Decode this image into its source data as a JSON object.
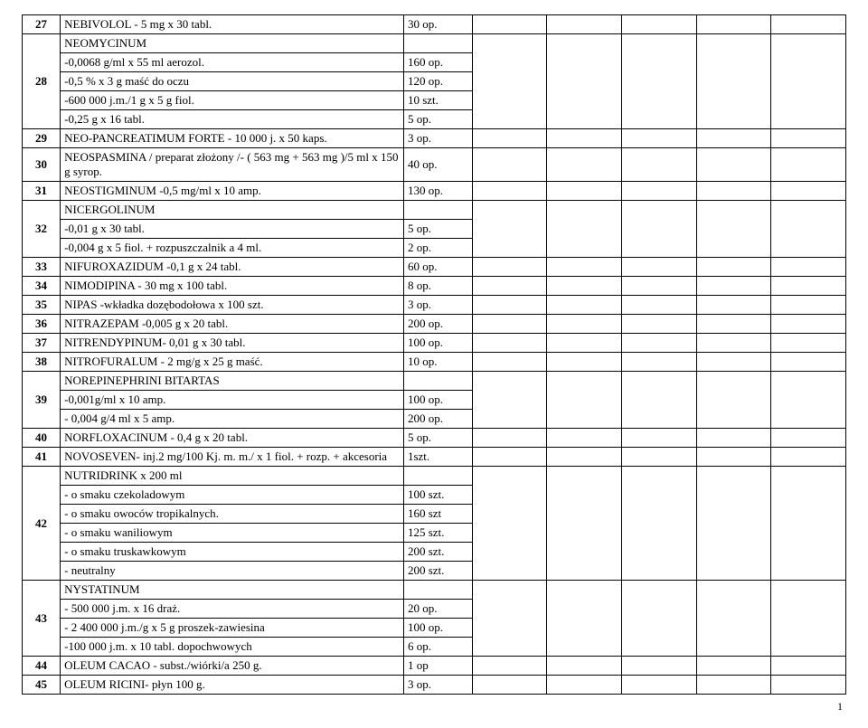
{
  "page_number": "1",
  "rows": [
    {
      "type": "single",
      "num": "27",
      "desc": "NEBIVOLOL - 5 mg x 30 tabl.",
      "qty": "30 op."
    },
    {
      "type": "multi",
      "num": "28",
      "lines": [
        {
          "desc": "NEOMYCINUM",
          "qty": ""
        },
        {
          "desc": "-0,0068 g/ml x 55 ml aerozol.",
          "qty": "160 op."
        },
        {
          "desc": "-0,5 % x 3 g maść do oczu",
          "qty": "120 op."
        },
        {
          "desc": "-600 000 j.m./1 g x 5 g fiol.",
          "qty": "10 szt."
        },
        {
          "desc": "-0,25 g x 16 tabl.",
          "qty": "5 op."
        }
      ]
    },
    {
      "type": "single",
      "num": "29",
      "desc": "NEO-PANCREATIMUM FORTE - 10 000 j. x 50 kaps.",
      "qty": "3 op."
    },
    {
      "type": "single",
      "num": "30",
      "desc": "NEOSPASMINA / preparat złożony /- ( 563 mg + 563 mg )/5 ml x 150 g syrop.",
      "qty": "40 op."
    },
    {
      "type": "single",
      "num": "31",
      "desc": "NEOSTIGMINUM  -0,5 mg/ml x 10 amp.",
      "qty": "130 op."
    },
    {
      "type": "multi",
      "num": "32",
      "lines": [
        {
          "desc": "NICERGOLINUM",
          "qty": ""
        },
        {
          "desc": "-0,01 g x 30 tabl.",
          "qty": "5  op."
        },
        {
          "desc": "-0,004 g x 5 fiol. + rozpuszczalnik a 4 ml.",
          "qty": "2 op."
        }
      ]
    },
    {
      "type": "single",
      "num": "33",
      "desc": "NIFUROXAZIDUM -0,1 g x 24 tabl.",
      "qty": "60 op."
    },
    {
      "type": "single",
      "num": "34",
      "desc": "NIMODIPINA - 30 mg x 100 tabl.",
      "qty": "8 op."
    },
    {
      "type": "single",
      "num": "35",
      "desc": "NIPAS -wkładka dozębodołowa x 100 szt.",
      "qty": "3 op."
    },
    {
      "type": "single",
      "num": "36",
      "desc": "NITRAZEPAM -0,005 g x 20 tabl.",
      "qty": "200 op."
    },
    {
      "type": "single",
      "num": "37",
      "desc": "NITRENDYPINUM- 0,01 g x 30 tabl.",
      "qty": "100 op."
    },
    {
      "type": "single",
      "num": "38",
      "desc": "NITROFURALUM -  2 mg/g x 25 g maść.",
      "qty": "10 op."
    },
    {
      "type": "multi",
      "num": "39",
      "lines": [
        {
          "desc": "NOREPINEPHRINI BITARTAS",
          "qty": ""
        },
        {
          "desc": "-0,001g/ml x 10 amp.",
          "qty": "100 op."
        },
        {
          "desc": "- 0,004 g/4 ml x 5 amp.",
          "qty": "200 op."
        }
      ]
    },
    {
      "type": "single",
      "num": "40",
      "desc": "NORFLOXACINUM  - 0,4 g x 20 tabl.",
      "qty": "5 op."
    },
    {
      "type": "single",
      "num": "41",
      "desc": "NOVOSEVEN- inj.2 mg/100 Kj. m. m./ x 1 fiol. + rozp. + akcesoria",
      "qty": "1szt."
    },
    {
      "type": "multi",
      "num": "42",
      "lines": [
        {
          "desc": "NUTRIDRINK x 200 ml",
          "qty": ""
        },
        {
          "desc": "- o smaku czekoladowym",
          "qty": "100 szt."
        },
        {
          "desc": "- o smaku owoców tropikalnych.",
          "qty": "160 szt"
        },
        {
          "desc": "- o smaku waniliowym",
          "qty": "125 szt."
        },
        {
          "desc": "- o smaku truskawkowym",
          "qty": "200 szt."
        },
        {
          "desc": "- neutralny",
          "qty": "200 szt."
        }
      ]
    },
    {
      "type": "multi",
      "num": "43",
      "lines": [
        {
          "desc": "NYSTATINUM",
          "qty": ""
        },
        {
          "desc": "- 500 000 j.m. x 16 draż.",
          "qty": "20 op."
        },
        {
          "desc": "-  2 400 000 j.m./g x 5 g proszek-zawiesina",
          "qty": "100 op."
        },
        {
          "desc": "-100 000 j.m. x 10 tabl. dopochwowych",
          "qty": "6 op."
        }
      ]
    },
    {
      "type": "single",
      "num": "44",
      "desc": "OLEUM  CACAO - subst./wiórki/a 250 g.",
      "qty": "1 op"
    },
    {
      "type": "single",
      "num": "45",
      "desc": "OLEUM  RICINI- płyn 100 g.",
      "qty": "3 op."
    }
  ]
}
